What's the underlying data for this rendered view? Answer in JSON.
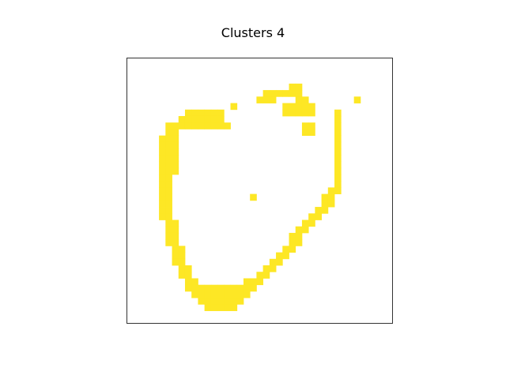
{
  "chart_data": {
    "type": "heatmap",
    "title": "Clusters 4",
    "xlabel": "",
    "ylabel": "",
    "grid_cols": 41,
    "grid_rows": 41,
    "axes_visible": false,
    "grid": false,
    "colors": {
      "cell": "#fde725",
      "background": "#ffffff",
      "frame": "#333333"
    },
    "cells": [
      [
        4,
        25
      ],
      [
        4,
        26
      ],
      [
        5,
        21
      ],
      [
        5,
        22
      ],
      [
        5,
        23
      ],
      [
        5,
        24
      ],
      [
        5,
        25
      ],
      [
        5,
        26
      ],
      [
        6,
        20
      ],
      [
        6,
        21
      ],
      [
        6,
        22
      ],
      [
        6,
        26
      ],
      [
        6,
        27
      ],
      [
        6,
        35
      ],
      [
        7,
        16
      ],
      [
        7,
        24
      ],
      [
        7,
        25
      ],
      [
        7,
        26
      ],
      [
        7,
        27
      ],
      [
        7,
        28
      ],
      [
        8,
        9
      ],
      [
        8,
        10
      ],
      [
        8,
        11
      ],
      [
        8,
        12
      ],
      [
        8,
        13
      ],
      [
        8,
        14
      ],
      [
        8,
        24
      ],
      [
        8,
        25
      ],
      [
        8,
        26
      ],
      [
        8,
        27
      ],
      [
        8,
        28
      ],
      [
        8,
        32
      ],
      [
        9,
        8
      ],
      [
        9,
        9
      ],
      [
        9,
        10
      ],
      [
        9,
        11
      ],
      [
        9,
        12
      ],
      [
        9,
        13
      ],
      [
        9,
        14
      ],
      [
        9,
        32
      ],
      [
        10,
        6
      ],
      [
        10,
        7
      ],
      [
        10,
        8
      ],
      [
        10,
        9
      ],
      [
        10,
        10
      ],
      [
        10,
        11
      ],
      [
        10,
        12
      ],
      [
        10,
        13
      ],
      [
        10,
        14
      ],
      [
        10,
        15
      ],
      [
        10,
        27
      ],
      [
        10,
        28
      ],
      [
        10,
        32
      ],
      [
        11,
        6
      ],
      [
        11,
        7
      ],
      [
        11,
        27
      ],
      [
        11,
        28
      ],
      [
        11,
        32
      ],
      [
        12,
        5
      ],
      [
        12,
        6
      ],
      [
        12,
        7
      ],
      [
        12,
        32
      ],
      [
        13,
        5
      ],
      [
        13,
        6
      ],
      [
        13,
        7
      ],
      [
        13,
        32
      ],
      [
        14,
        5
      ],
      [
        14,
        6
      ],
      [
        14,
        7
      ],
      [
        14,
        32
      ],
      [
        15,
        5
      ],
      [
        15,
        6
      ],
      [
        15,
        7
      ],
      [
        15,
        32
      ],
      [
        16,
        5
      ],
      [
        16,
        6
      ],
      [
        16,
        7
      ],
      [
        16,
        32
      ],
      [
        17,
        5
      ],
      [
        17,
        6
      ],
      [
        17,
        7
      ],
      [
        17,
        32
      ],
      [
        18,
        5
      ],
      [
        18,
        6
      ],
      [
        18,
        32
      ],
      [
        19,
        5
      ],
      [
        19,
        6
      ],
      [
        19,
        32
      ],
      [
        20,
        5
      ],
      [
        20,
        6
      ],
      [
        20,
        31
      ],
      [
        20,
        32
      ],
      [
        21,
        5
      ],
      [
        21,
        6
      ],
      [
        21,
        19
      ],
      [
        21,
        30
      ],
      [
        21,
        31
      ],
      [
        22,
        5
      ],
      [
        22,
        6
      ],
      [
        22,
        30
      ],
      [
        22,
        31
      ],
      [
        23,
        5
      ],
      [
        23,
        6
      ],
      [
        23,
        29
      ],
      [
        23,
        30
      ],
      [
        24,
        5
      ],
      [
        24,
        6
      ],
      [
        24,
        28
      ],
      [
        24,
        29
      ],
      [
        25,
        6
      ],
      [
        25,
        7
      ],
      [
        25,
        27
      ],
      [
        25,
        28
      ],
      [
        26,
        6
      ],
      [
        26,
        7
      ],
      [
        26,
        26
      ],
      [
        26,
        27
      ],
      [
        27,
        6
      ],
      [
        27,
        7
      ],
      [
        27,
        25
      ],
      [
        27,
        26
      ],
      [
        28,
        6
      ],
      [
        28,
        7
      ],
      [
        28,
        25
      ],
      [
        28,
        26
      ],
      [
        29,
        7
      ],
      [
        29,
        8
      ],
      [
        29,
        24
      ],
      [
        29,
        25
      ],
      [
        30,
        7
      ],
      [
        30,
        8
      ],
      [
        30,
        23
      ],
      [
        30,
        24
      ],
      [
        31,
        7
      ],
      [
        31,
        8
      ],
      [
        31,
        22
      ],
      [
        31,
        23
      ],
      [
        32,
        8
      ],
      [
        32,
        9
      ],
      [
        32,
        21
      ],
      [
        32,
        22
      ],
      [
        33,
        8
      ],
      [
        33,
        9
      ],
      [
        33,
        20
      ],
      [
        33,
        21
      ],
      [
        34,
        9
      ],
      [
        34,
        10
      ],
      [
        34,
        18
      ],
      [
        34,
        19
      ],
      [
        34,
        20
      ],
      [
        35,
        9
      ],
      [
        35,
        10
      ],
      [
        35,
        11
      ],
      [
        35,
        12
      ],
      [
        35,
        13
      ],
      [
        35,
        14
      ],
      [
        35,
        15
      ],
      [
        35,
        16
      ],
      [
        35,
        17
      ],
      [
        35,
        18
      ],
      [
        35,
        19
      ],
      [
        36,
        10
      ],
      [
        36,
        11
      ],
      [
        36,
        12
      ],
      [
        36,
        13
      ],
      [
        36,
        14
      ],
      [
        36,
        15
      ],
      [
        36,
        16
      ],
      [
        36,
        17
      ],
      [
        36,
        18
      ],
      [
        37,
        11
      ],
      [
        37,
        12
      ],
      [
        37,
        13
      ],
      [
        37,
        14
      ],
      [
        37,
        15
      ],
      [
        37,
        16
      ],
      [
        37,
        17
      ],
      [
        38,
        12
      ],
      [
        38,
        13
      ],
      [
        38,
        14
      ],
      [
        38,
        15
      ],
      [
        38,
        16
      ]
    ]
  }
}
